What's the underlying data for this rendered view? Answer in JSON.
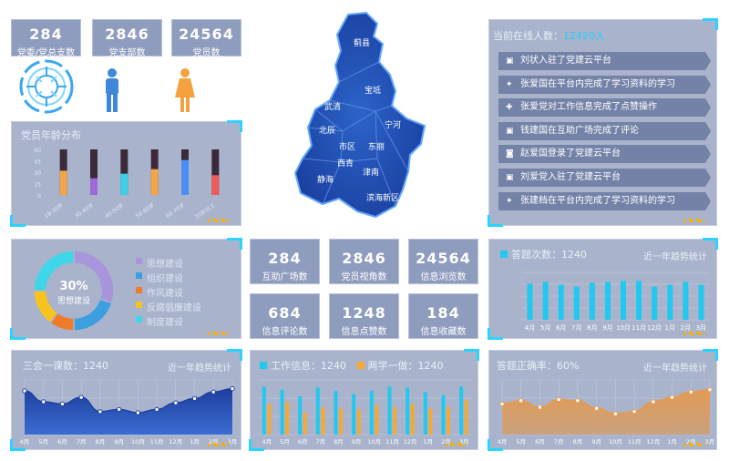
{
  "top_stats": [
    {
      "value": "284",
      "label": "党委/党总支数"
    },
    {
      "value": "2846",
      "label": "党支部数"
    },
    {
      "value": "24564",
      "label": "党员数"
    }
  ],
  "age_panel": {
    "title": "党员年龄分布",
    "chart_data": {
      "type": "bar",
      "categories": [
        "18-30岁",
        "30-40岁",
        "40-50岁",
        "50-60岁",
        "60-70岁",
        "70岁以上"
      ],
      "values": [
        32,
        22,
        28,
        34,
        46,
        26
      ],
      "ylim": [
        0,
        60
      ],
      "colors": [
        "#f3a54a",
        "#9d6ad8",
        "#3ecfe8",
        "#f3a54a",
        "#4a8ef5",
        "#f05a5a"
      ]
    }
  },
  "map": {
    "regions": [
      "蓟县",
      "宝坻",
      "武清",
      "宁河",
      "北辰",
      "市区",
      "东丽",
      "西青",
      "津南",
      "静海",
      "滨海新区"
    ]
  },
  "online": {
    "title_prefix": "当前在线人数：",
    "count": "12420人",
    "items": [
      {
        "icon": "message-icon",
        "glyph": "▣",
        "text": "刘状入驻了党建云平台"
      },
      {
        "icon": "graduation-cap-icon",
        "glyph": "✦",
        "text": "张爱国在平台内完成了学习资料的学习"
      },
      {
        "icon": "thumbs-up-icon",
        "glyph": "✚",
        "text": "张爱党对工作信息完成了点赞操作"
      },
      {
        "icon": "comment-icon",
        "glyph": "▣",
        "text": "钱建国在互助广场完成了评论"
      },
      {
        "icon": "user-icon",
        "glyph": "◙",
        "text": "赵爱国登录了党建云平台"
      },
      {
        "icon": "message-icon",
        "glyph": "▣",
        "text": "刘爱党入驻了党建云平台"
      },
      {
        "icon": "graduation-cap-icon",
        "glyph": "✦",
        "text": "张建档在平台内完成了学习资料的学习"
      }
    ]
  },
  "donut_panel": {
    "center_value": "30%",
    "center_label": "思想建设",
    "legend": [
      "思想建设",
      "组织建设",
      "作风建设",
      "反腐倡廉建设",
      "制度建设"
    ],
    "chart_data": {
      "type": "pie",
      "categories": [
        "思想建设",
        "组织建设",
        "作风建设",
        "反腐倡廉建设",
        "制度建设"
      ],
      "values": [
        30,
        20,
        10,
        15,
        25
      ],
      "colors": [
        "#a995dc",
        "#3b9fe0",
        "#f07a2a",
        "#f7c31e",
        "#3ed6e8"
      ]
    }
  },
  "mid_stats": [
    {
      "value": "284",
      "label": "互助广场数"
    },
    {
      "value": "2846",
      "label": "党员视角数"
    },
    {
      "value": "24564",
      "label": "信息浏览数"
    },
    {
      "value": "684",
      "label": "信息评论数"
    },
    {
      "value": "1248",
      "label": "信息点赞数"
    },
    {
      "value": "184",
      "label": "信息收藏数"
    }
  ],
  "answer_panel": {
    "title": "答题次数：1240",
    "right_label": "近一年趋势统计",
    "chart_data": {
      "type": "bar",
      "categories": [
        "4月",
        "5月",
        "6月",
        "7月",
        "8月",
        "9月",
        "10月",
        "11月",
        "12月",
        "1月",
        "2月",
        "3月"
      ],
      "values": [
        76,
        80,
        74,
        70,
        78,
        80,
        82,
        82,
        70,
        74,
        80,
        74
      ],
      "ylim": [
        0,
        100
      ]
    }
  },
  "meeting_panel": {
    "title": "三会一课数：1240",
    "right_label": "近一年趋势统计",
    "chart_data": {
      "type": "area",
      "x": [
        "4月",
        "5月",
        "6月",
        "7月",
        "8月",
        "9月",
        "10月",
        "11月",
        "12月",
        "1月",
        "2月",
        "3月"
      ],
      "values": [
        80,
        60,
        56,
        68,
        42,
        46,
        40,
        46,
        58,
        66,
        78,
        84
      ],
      "ylim": [
        0,
        100
      ]
    }
  },
  "work_panel": {
    "title_a": "工作信息：1240",
    "title_b": "两学一做：1240",
    "chart_data": {
      "type": "bar",
      "categories": [
        "4月",
        "5月",
        "6月",
        "7月",
        "8月",
        "9月",
        "10月",
        "11月",
        "12月",
        "1月",
        "2月",
        "3月"
      ],
      "series": [
        {
          "name": "工作信息",
          "values": [
            88,
            82,
            70,
            86,
            80,
            74,
            80,
            88,
            86,
            78,
            72,
            88
          ]
        },
        {
          "name": "两学一做",
          "values": [
            56,
            60,
            40,
            50,
            48,
            46,
            54,
            50,
            56,
            48,
            50,
            64
          ]
        }
      ],
      "colors": [
        "#21c8ef",
        "#f3a932"
      ],
      "ylim": [
        0,
        100
      ]
    }
  },
  "correct_panel": {
    "title": "答题正确率：60%",
    "right_label": "近一年趋势统计",
    "chart_data": {
      "type": "area",
      "x": [
        "4月",
        "5月",
        "6月",
        "7月",
        "8月",
        "9月",
        "10月",
        "11月",
        "12月",
        "1月",
        "2月",
        "3月"
      ],
      "values": [
        56,
        62,
        50,
        64,
        62,
        48,
        38,
        42,
        60,
        68,
        78,
        82
      ],
      "ylim": [
        0,
        100
      ]
    }
  }
}
